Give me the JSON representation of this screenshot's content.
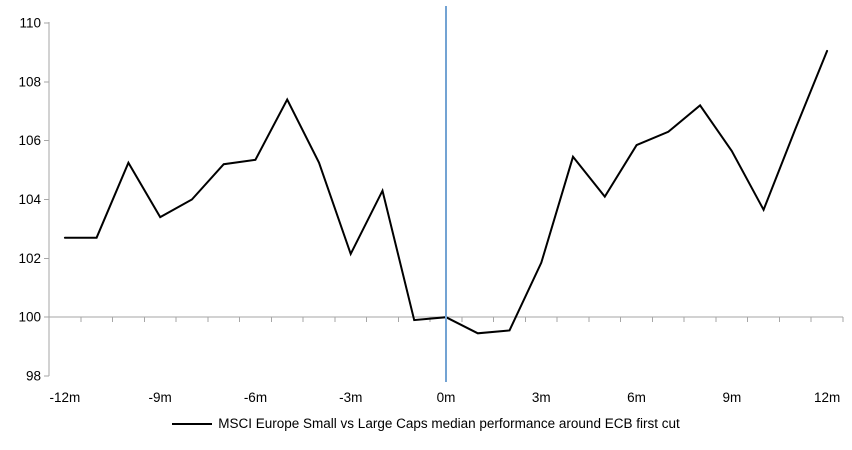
{
  "chart_data": {
    "type": "line",
    "title": "",
    "xlabel": "",
    "ylabel": "",
    "x_unit": "months relative to ECB first cut",
    "x": [
      -12,
      -11,
      -10,
      -9,
      -8,
      -7,
      -6,
      -5,
      -4,
      -3,
      -2,
      -1,
      0,
      1,
      2,
      3,
      4,
      5,
      6,
      7,
      8,
      9,
      10,
      11,
      12
    ],
    "series": [
      {
        "name": "MSCI Europe Small vs Large Caps median performance around ECB first cut",
        "color": "#000000",
        "values": [
          102.7,
          102.7,
          105.25,
          103.4,
          104.0,
          105.2,
          105.35,
          107.4,
          105.25,
          102.15,
          104.3,
          99.9,
          100.0,
          99.45,
          99.55,
          101.85,
          105.45,
          104.1,
          105.85,
          106.3,
          107.2,
          105.65,
          103.65,
          106.4,
          109.05
        ]
      }
    ],
    "ylim": [
      98,
      110
    ],
    "y_ticks": [
      {
        "value": 110,
        "label": "110"
      },
      {
        "value": 108,
        "label": "108"
      },
      {
        "value": 106,
        "label": "106"
      },
      {
        "value": 104,
        "label": "104"
      },
      {
        "value": 102,
        "label": "102"
      },
      {
        "value": 100,
        "label": "100"
      },
      {
        "value": 98,
        "label": "98"
      }
    ],
    "x_ticks": [
      {
        "x": -12,
        "label": "-12m"
      },
      {
        "x": -9,
        "label": "-9m"
      },
      {
        "x": -6,
        "label": "-6m"
      },
      {
        "x": -3,
        "label": "-3m"
      },
      {
        "x": 0,
        "label": "0m"
      },
      {
        "x": 3,
        "label": "3m"
      },
      {
        "x": 6,
        "label": "6m"
      },
      {
        "x": 9,
        "label": "9m"
      },
      {
        "x": 12,
        "label": "12m"
      }
    ],
    "minor_tick_every_month": true,
    "baseline_value": 100,
    "event_line": {
      "x": 0,
      "color": "#73A3D3"
    },
    "axis_color": "#A6A6A6",
    "label_color": "#000000",
    "grid": "baseline-only",
    "legend_position": "bottom"
  }
}
